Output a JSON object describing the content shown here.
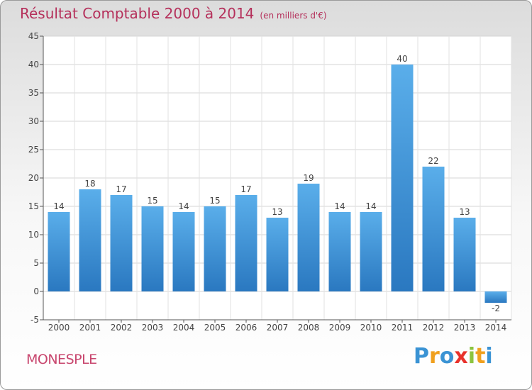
{
  "chart_data": {
    "type": "bar",
    "title": "Résultat Comptable 2000 à 2014",
    "subtitle": "(en milliers d'€)",
    "categories": [
      "2000",
      "2001",
      "2002",
      "2003",
      "2004",
      "2005",
      "2006",
      "2007",
      "2008",
      "2009",
      "2010",
      "2011",
      "2012",
      "2013",
      "2014"
    ],
    "values": [
      14,
      18,
      17,
      15,
      14,
      15,
      17,
      13,
      19,
      14,
      14,
      40,
      22,
      13,
      -2
    ],
    "data_labels": [
      "14",
      "18",
      "17",
      "15",
      "14",
      "15",
      "17",
      "13",
      "19",
      "14",
      "14",
      "40",
      "22",
      "13",
      "-2"
    ],
    "ylim": [
      -5,
      45
    ],
    "yticks": [
      -5,
      0,
      5,
      10,
      15,
      20,
      25,
      30,
      35,
      40,
      45
    ],
    "grid": true,
    "bar_color": "#3d8fd6"
  },
  "commune": "MONESPLE",
  "logo": {
    "letters": [
      "P",
      "r",
      "o",
      "x",
      "i",
      "t",
      "i"
    ],
    "colors": [
      "#3a93d4",
      "#f0a01e",
      "#3a93d4",
      "#e8322c",
      "#8cc43f",
      "#f0a01e",
      "#3a93d4"
    ]
  }
}
